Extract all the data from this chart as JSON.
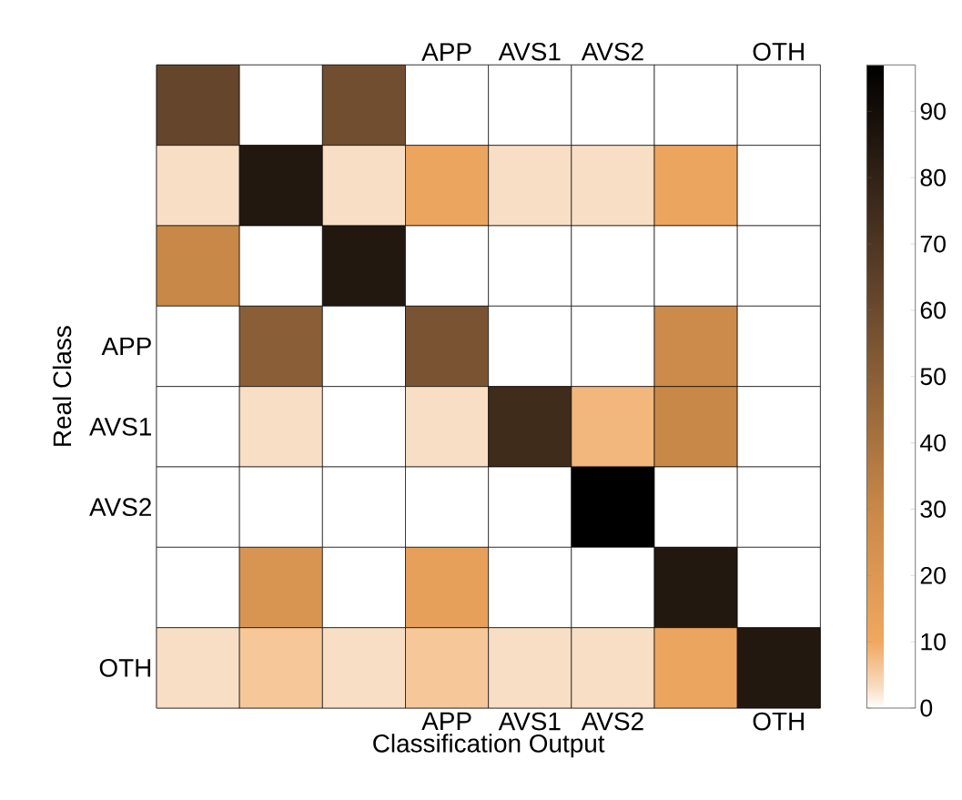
{
  "chart_data": {
    "type": "heatmap",
    "xlabel": "Classification Output",
    "ylabel": "Real Class",
    "categories": [
      null,
      null,
      null,
      "APP",
      "AVS1",
      "AVS2",
      null,
      "OTH"
    ],
    "y_categories": [
      null,
      null,
      null,
      "APP",
      "AVS1",
      "AVS2",
      null,
      "OTH"
    ],
    "cells": [
      [
        62,
        0,
        58,
        0,
        0,
        0,
        0,
        0
      ],
      [
        3,
        85,
        3,
        12,
        3,
        3,
        12,
        0
      ],
      [
        30,
        0,
        85,
        0,
        0,
        0,
        0,
        0
      ],
      [
        0,
        50,
        0,
        55,
        0,
        0,
        28,
        0
      ],
      [
        0,
        3,
        0,
        3,
        75,
        8,
        30,
        0
      ],
      [
        0,
        0,
        0,
        0,
        0,
        97,
        0,
        0
      ],
      [
        0,
        22,
        0,
        15,
        0,
        0,
        85,
        0
      ],
      [
        3,
        6,
        3,
        6,
        3,
        3,
        12,
        85
      ]
    ],
    "clim": [
      0,
      97
    ],
    "cticks": [
      0,
      10,
      20,
      30,
      40,
      50,
      60,
      70,
      80,
      90
    ]
  }
}
